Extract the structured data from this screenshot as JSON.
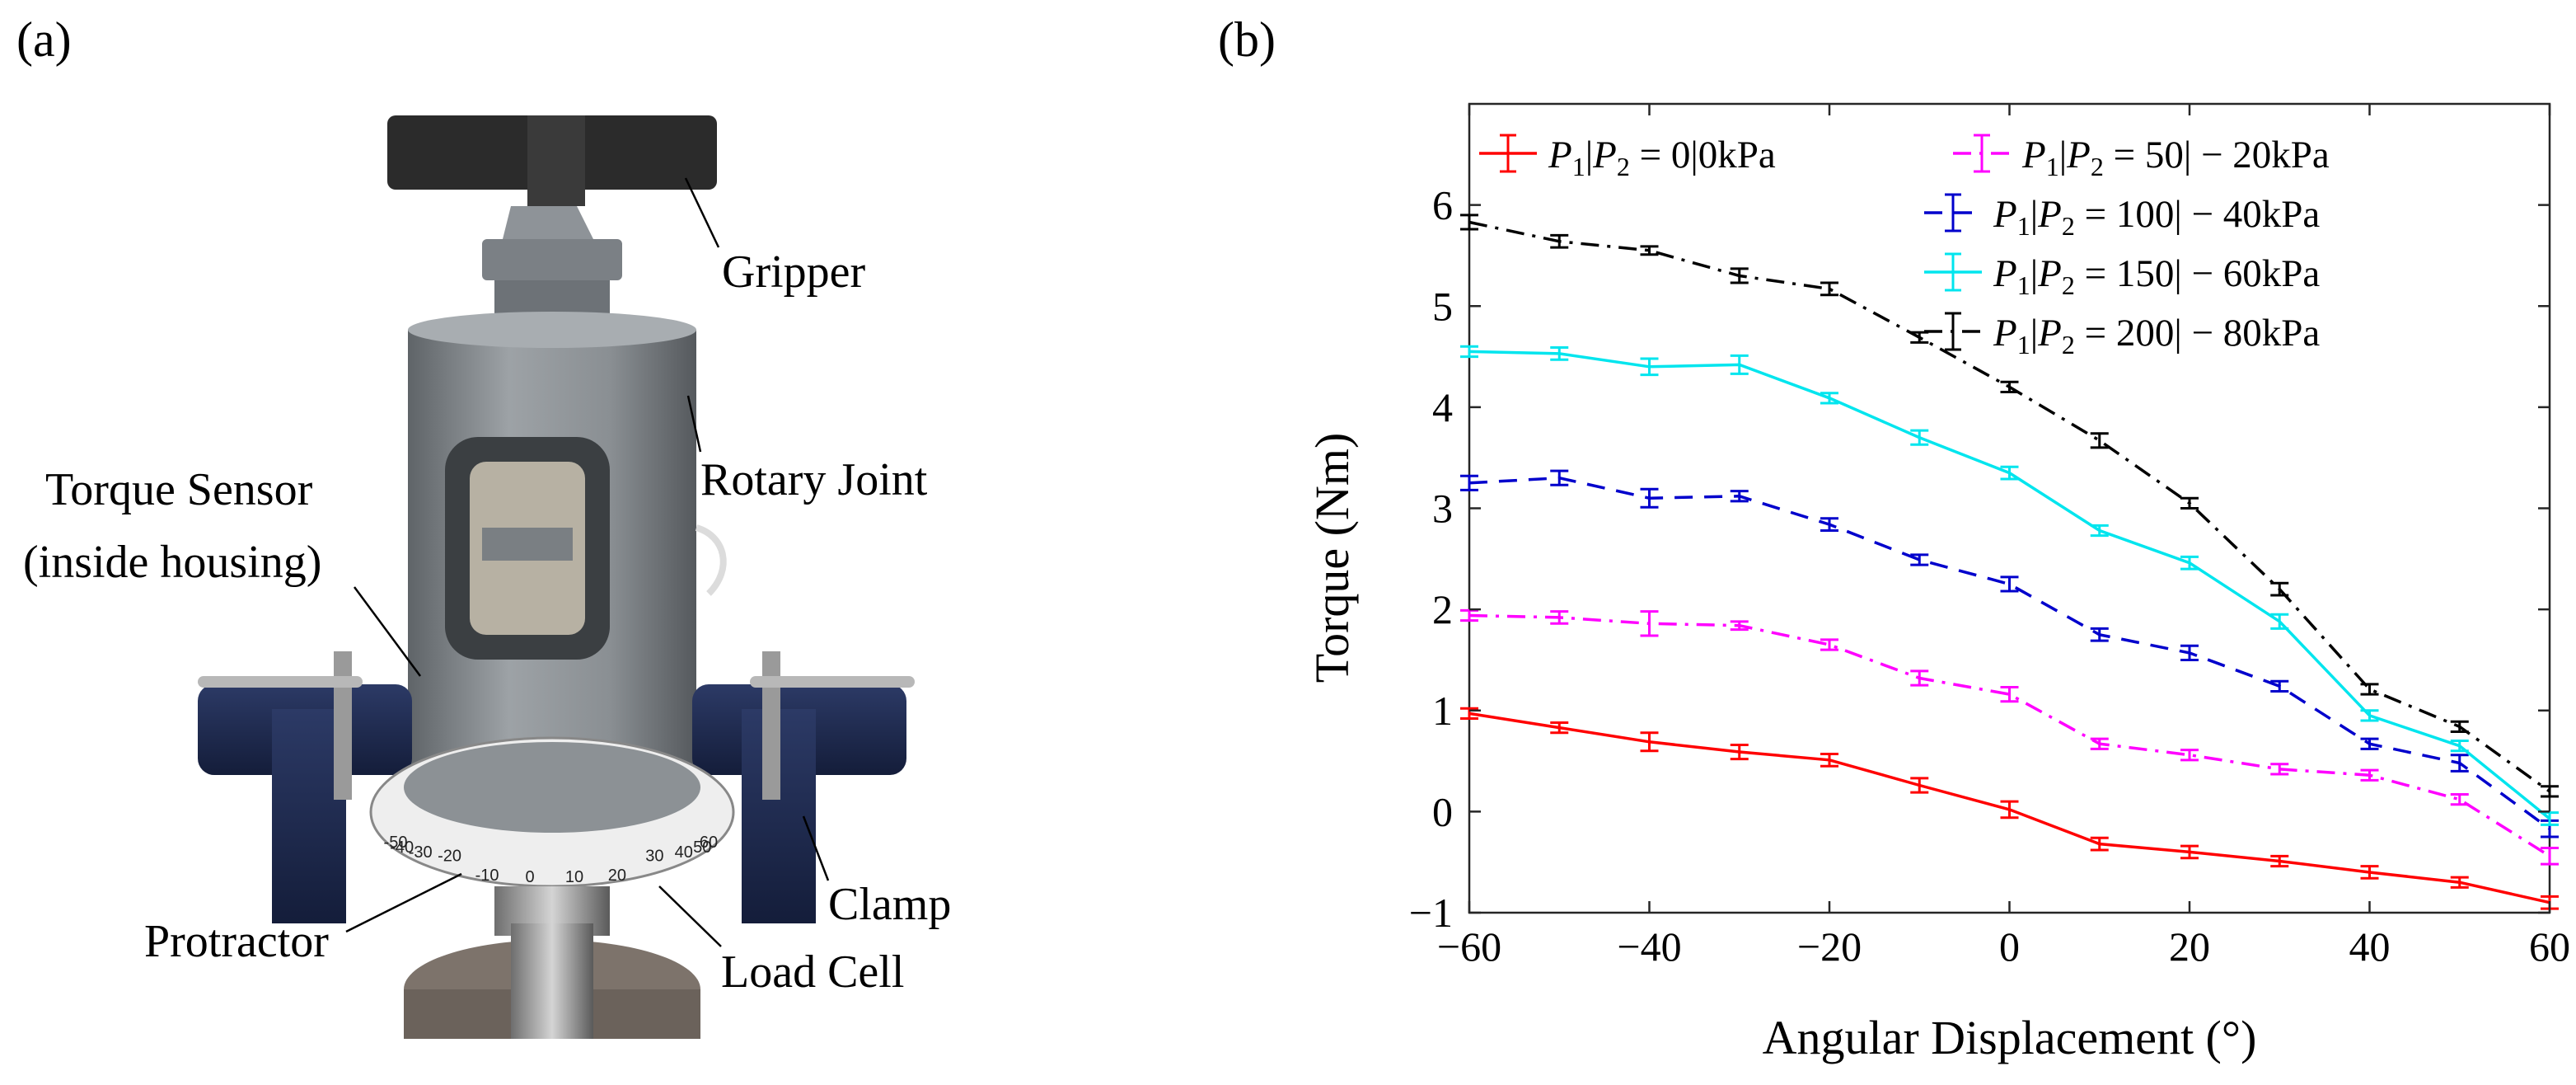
{
  "panels": {
    "a_label": "(a)",
    "b_label": "(b)"
  },
  "photo": {
    "annotations": {
      "gripper": "Gripper",
      "rotary_joint": "Rotary Joint",
      "torque_sensor_line1": "Torque Sensor",
      "torque_sensor_line2": "(inside housing)",
      "clamp": "Clamp",
      "protractor": "Protractor",
      "load_cell": "Load Cell"
    },
    "scale_ticks": [
      "-50",
      "-40",
      "-30",
      "-20",
      "-10",
      "0",
      "10",
      "20",
      "30",
      "40",
      "50",
      "60"
    ]
  },
  "colors": {
    "red": "#ff0000",
    "magenta": "#ff00ff",
    "blue": "#0000cc",
    "cyan": "#00e5ee",
    "black": "#000000"
  },
  "chart_data": {
    "type": "line",
    "title": "",
    "xlabel": "Angular Displacement (°)",
    "ylabel": "Torque (Nm)",
    "xlim": [
      -60,
      60
    ],
    "ylim": [
      -1,
      7
    ],
    "xticks": [
      -60,
      -40,
      -20,
      0,
      20,
      40,
      60
    ],
    "xtick_labels": [
      "−60",
      "−40",
      "−20",
      "0",
      "20",
      "40",
      "60"
    ],
    "yticks": [
      -1,
      0,
      1,
      2,
      3,
      4,
      5,
      6
    ],
    "ytick_labels": [
      "−1",
      "0",
      "1",
      "2",
      "3",
      "4",
      "5",
      "6"
    ],
    "x": [
      -60,
      -50,
      -40,
      -30,
      -20,
      -10,
      0,
      10,
      20,
      30,
      40,
      50,
      60
    ],
    "series": [
      {
        "name": "P1|P2 = 0|0kPa",
        "legend": {
          "lhs": "P",
          "s1": "1",
          "mid": "|P",
          "s2": "2",
          "rhs": " = 0|0kPa"
        },
        "color": "#ff0000",
        "dash": "solid",
        "values": [
          0.97,
          0.83,
          0.69,
          0.59,
          0.51,
          0.26,
          0.02,
          -0.32,
          -0.4,
          -0.49,
          -0.6,
          -0.7,
          -0.9
        ],
        "errors": [
          0.05,
          0.05,
          0.09,
          0.07,
          0.06,
          0.07,
          0.08,
          0.06,
          0.06,
          0.05,
          0.06,
          0.05,
          0.06
        ]
      },
      {
        "name": "P1|P2 = 50|−20kPa",
        "legend": {
          "lhs": "P",
          "s1": "1",
          "mid": "|P",
          "s2": "2",
          "rhs": " = 50| − 20kPa"
        },
        "color": "#ff00ff",
        "dash": "dashdot",
        "values": [
          1.94,
          1.92,
          1.86,
          1.84,
          1.65,
          1.32,
          1.16,
          0.67,
          0.56,
          0.42,
          0.36,
          0.12,
          -0.44
        ],
        "errors": [
          0.05,
          0.06,
          0.12,
          0.04,
          0.05,
          0.07,
          0.07,
          0.05,
          0.05,
          0.05,
          0.05,
          0.05,
          0.08
        ]
      },
      {
        "name": "P1|P2 = 100|−40kPa",
        "legend": {
          "lhs": "P",
          "s1": "1",
          "mid": "|P",
          "s2": "2",
          "rhs": " = 100| − 40kPa"
        },
        "color": "#0000cc",
        "dash": "dashed",
        "values": [
          3.25,
          3.3,
          3.1,
          3.12,
          2.84,
          2.49,
          2.25,
          1.75,
          1.57,
          1.24,
          0.67,
          0.48,
          -0.17
        ],
        "errors": [
          0.07,
          0.07,
          0.09,
          0.05,
          0.06,
          0.05,
          0.07,
          0.06,
          0.07,
          0.05,
          0.05,
          0.08,
          0.08
        ]
      },
      {
        "name": "P1|P2 = 150|−60kPa",
        "legend": {
          "lhs": "P",
          "s1": "1",
          "mid": "|P",
          "s2": "2",
          "rhs": " = 150| − 60kPa"
        },
        "color": "#00e5ee",
        "dash": "solid",
        "values": [
          4.55,
          4.53,
          4.4,
          4.42,
          4.09,
          3.7,
          3.35,
          2.78,
          2.46,
          1.88,
          0.95,
          0.65,
          -0.07
        ],
        "errors": [
          0.05,
          0.06,
          0.08,
          0.09,
          0.05,
          0.07,
          0.06,
          0.05,
          0.06,
          0.07,
          0.05,
          0.05,
          0.06
        ]
      },
      {
        "name": "P1|P2 = 200|−80kPa",
        "legend": {
          "lhs": "P",
          "s1": "1",
          "mid": "|P",
          "s2": "2",
          "rhs": " = 200| − 80kPa"
        },
        "color": "#000000",
        "dash": "dashdot",
        "values": [
          5.83,
          5.64,
          5.55,
          5.3,
          5.17,
          4.69,
          4.2,
          3.67,
          3.05,
          2.2,
          1.21,
          0.84,
          0.2
        ],
        "errors": [
          0.07,
          0.06,
          0.04,
          0.07,
          0.06,
          0.05,
          0.05,
          0.07,
          0.05,
          0.06,
          0.05,
          0.05,
          0.05
        ]
      }
    ]
  }
}
